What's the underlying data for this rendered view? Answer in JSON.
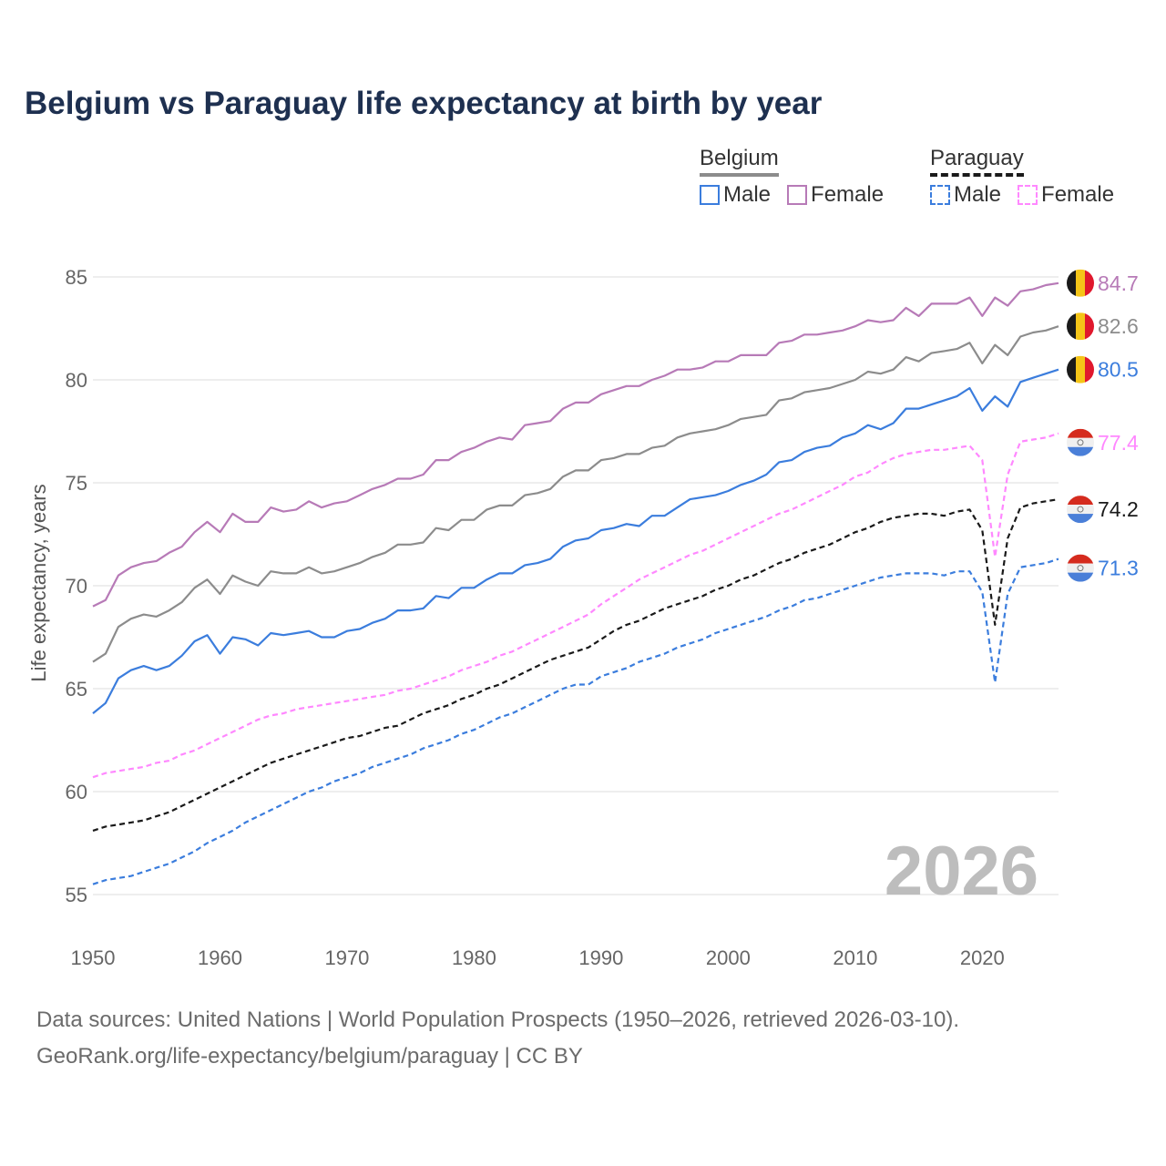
{
  "chart_data": {
    "type": "line",
    "title": "Belgium vs Paraguay life expectancy at birth by year",
    "xlabel": "",
    "ylabel": "Life expectancy, years",
    "xlim": [
      1950,
      2026
    ],
    "ylim": [
      55,
      85
    ],
    "x_ticks": [
      1950,
      1960,
      1970,
      1980,
      1990,
      2000,
      2010,
      2020
    ],
    "y_ticks": [
      55,
      60,
      65,
      70,
      75,
      80,
      85
    ],
    "grid": true,
    "watermark": "2026",
    "legend": {
      "placement": "top-right",
      "groups": [
        {
          "country": "Belgium",
          "items": [
            "Male",
            "Female"
          ]
        },
        {
          "country": "Paraguay",
          "items": [
            "Male",
            "Female"
          ]
        }
      ]
    },
    "series": [
      {
        "name": "Belgium Female",
        "country": "Belgium",
        "color": "#b77ab7",
        "dashed": false,
        "end_label": "84.7",
        "values": [
          69.0,
          69.3,
          70.5,
          70.9,
          71.1,
          71.2,
          71.6,
          71.9,
          72.6,
          73.1,
          72.6,
          73.5,
          73.1,
          73.1,
          73.8,
          73.6,
          73.7,
          74.1,
          73.8,
          74.0,
          74.1,
          74.4,
          74.7,
          74.9,
          75.2,
          75.2,
          75.4,
          76.1,
          76.1,
          76.5,
          76.7,
          77.0,
          77.2,
          77.1,
          77.8,
          77.9,
          78.0,
          78.6,
          78.9,
          78.9,
          79.3,
          79.5,
          79.7,
          79.7,
          80.0,
          80.2,
          80.5,
          80.5,
          80.6,
          80.9,
          80.9,
          81.2,
          81.2,
          81.2,
          81.8,
          81.9,
          82.2,
          82.2,
          82.3,
          82.4,
          82.6,
          82.9,
          82.8,
          82.9,
          83.5,
          83.1,
          83.7,
          83.7,
          83.7,
          84.0,
          83.1,
          84.0,
          83.6,
          84.3,
          84.4,
          84.6,
          84.7
        ]
      },
      {
        "name": "Belgium Total",
        "country": "Belgium",
        "color": "#8c8c8c",
        "dashed": false,
        "end_label": "82.6",
        "values": [
          66.3,
          66.7,
          68.0,
          68.4,
          68.6,
          68.5,
          68.8,
          69.2,
          69.9,
          70.3,
          69.6,
          70.5,
          70.2,
          70.0,
          70.7,
          70.6,
          70.6,
          70.9,
          70.6,
          70.7,
          70.9,
          71.1,
          71.4,
          71.6,
          72.0,
          72.0,
          72.1,
          72.8,
          72.7,
          73.2,
          73.2,
          73.7,
          73.9,
          73.9,
          74.4,
          74.5,
          74.7,
          75.3,
          75.6,
          75.6,
          76.1,
          76.2,
          76.4,
          76.4,
          76.7,
          76.8,
          77.2,
          77.4,
          77.5,
          77.6,
          77.8,
          78.1,
          78.2,
          78.3,
          79.0,
          79.1,
          79.4,
          79.5,
          79.6,
          79.8,
          80.0,
          80.4,
          80.3,
          80.5,
          81.1,
          80.9,
          81.3,
          81.4,
          81.5,
          81.8,
          80.8,
          81.7,
          81.2,
          82.1,
          82.3,
          82.4,
          82.6
        ]
      },
      {
        "name": "Belgium Male",
        "country": "Belgium",
        "color": "#3b7ddd",
        "dashed": false,
        "end_label": "80.5",
        "values": [
          63.8,
          64.3,
          65.5,
          65.9,
          66.1,
          65.9,
          66.1,
          66.6,
          67.3,
          67.6,
          66.7,
          67.5,
          67.4,
          67.1,
          67.7,
          67.6,
          67.7,
          67.8,
          67.5,
          67.5,
          67.8,
          67.9,
          68.2,
          68.4,
          68.8,
          68.8,
          68.9,
          69.5,
          69.4,
          69.9,
          69.9,
          70.3,
          70.6,
          70.6,
          71.0,
          71.1,
          71.3,
          71.9,
          72.2,
          72.3,
          72.7,
          72.8,
          73.0,
          72.9,
          73.4,
          73.4,
          73.8,
          74.2,
          74.3,
          74.4,
          74.6,
          74.9,
          75.1,
          75.4,
          76.0,
          76.1,
          76.5,
          76.7,
          76.8,
          77.2,
          77.4,
          77.8,
          77.6,
          77.9,
          78.6,
          78.6,
          78.8,
          79.0,
          79.2,
          79.6,
          78.5,
          79.2,
          78.7,
          79.9,
          80.1,
          80.3,
          80.5
        ]
      },
      {
        "name": "Paraguay Female",
        "country": "Paraguay",
        "color": "#ff88ff",
        "dashed": true,
        "end_label": "77.4",
        "values": [
          60.7,
          60.9,
          61.0,
          61.1,
          61.2,
          61.4,
          61.5,
          61.8,
          62.0,
          62.3,
          62.6,
          62.9,
          63.2,
          63.5,
          63.7,
          63.8,
          64.0,
          64.1,
          64.2,
          64.3,
          64.4,
          64.5,
          64.6,
          64.7,
          64.9,
          65.0,
          65.2,
          65.4,
          65.6,
          65.9,
          66.1,
          66.3,
          66.6,
          66.8,
          67.1,
          67.4,
          67.7,
          68.0,
          68.3,
          68.6,
          69.1,
          69.5,
          69.9,
          70.3,
          70.6,
          70.9,
          71.2,
          71.5,
          71.7,
          72.0,
          72.3,
          72.6,
          72.9,
          73.2,
          73.5,
          73.7,
          74.0,
          74.3,
          74.6,
          74.9,
          75.3,
          75.5,
          75.9,
          76.2,
          76.4,
          76.5,
          76.6,
          76.6,
          76.7,
          76.8,
          76.1,
          71.4,
          75.4,
          77.0,
          77.1,
          77.2,
          77.4
        ]
      },
      {
        "name": "Paraguay Total",
        "country": "Paraguay",
        "color": "#1a1a1a",
        "dashed": true,
        "end_label": "74.2",
        "values": [
          58.1,
          58.3,
          58.4,
          58.5,
          58.6,
          58.8,
          59.0,
          59.3,
          59.6,
          59.9,
          60.2,
          60.5,
          60.8,
          61.1,
          61.4,
          61.6,
          61.8,
          62.0,
          62.2,
          62.4,
          62.6,
          62.7,
          62.9,
          63.1,
          63.2,
          63.5,
          63.8,
          64.0,
          64.2,
          64.5,
          64.7,
          65.0,
          65.2,
          65.5,
          65.8,
          66.1,
          66.4,
          66.6,
          66.8,
          67.0,
          67.4,
          67.8,
          68.1,
          68.3,
          68.6,
          68.9,
          69.1,
          69.3,
          69.5,
          69.8,
          70.0,
          70.3,
          70.5,
          70.8,
          71.1,
          71.3,
          71.6,
          71.8,
          72.0,
          72.3,
          72.6,
          72.8,
          73.1,
          73.3,
          73.4,
          73.5,
          73.5,
          73.4,
          73.6,
          73.7,
          72.7,
          68.1,
          72.3,
          73.8,
          74.0,
          74.1,
          74.2
        ]
      },
      {
        "name": "Paraguay Male",
        "country": "Paraguay",
        "color": "#3b7ddd",
        "dashed": true,
        "end_label": "71.3",
        "values": [
          55.5,
          55.7,
          55.8,
          55.9,
          56.1,
          56.3,
          56.5,
          56.8,
          57.1,
          57.5,
          57.8,
          58.1,
          58.5,
          58.8,
          59.1,
          59.4,
          59.7,
          60.0,
          60.2,
          60.5,
          60.7,
          60.9,
          61.2,
          61.4,
          61.6,
          61.8,
          62.1,
          62.3,
          62.5,
          62.8,
          63.0,
          63.3,
          63.6,
          63.8,
          64.1,
          64.4,
          64.7,
          65.0,
          65.2,
          65.2,
          65.6,
          65.8,
          66.0,
          66.3,
          66.5,
          66.7,
          67.0,
          67.2,
          67.4,
          67.7,
          67.9,
          68.1,
          68.3,
          68.5,
          68.8,
          69.0,
          69.3,
          69.4,
          69.6,
          69.8,
          70.0,
          70.2,
          70.4,
          70.5,
          70.6,
          70.6,
          70.6,
          70.5,
          70.7,
          70.7,
          69.7,
          65.3,
          69.6,
          70.9,
          71.0,
          71.1,
          71.3
        ]
      }
    ]
  },
  "colors": {
    "belgium_male": "#3b7ddd",
    "belgium_female": "#b77ab7",
    "belgium_total": "#8c8c8c",
    "paraguay_male": "#3b7ddd",
    "paraguay_female": "#ff88ff",
    "paraguay_total": "#1a1a1a"
  },
  "footer": {
    "line1": "Data sources: United Nations | World Population Prospects (1950–2026, retrieved 2026-03-10).",
    "line2": "GeoRank.org/life-expectancy/belgium/paraguay | CC BY"
  }
}
